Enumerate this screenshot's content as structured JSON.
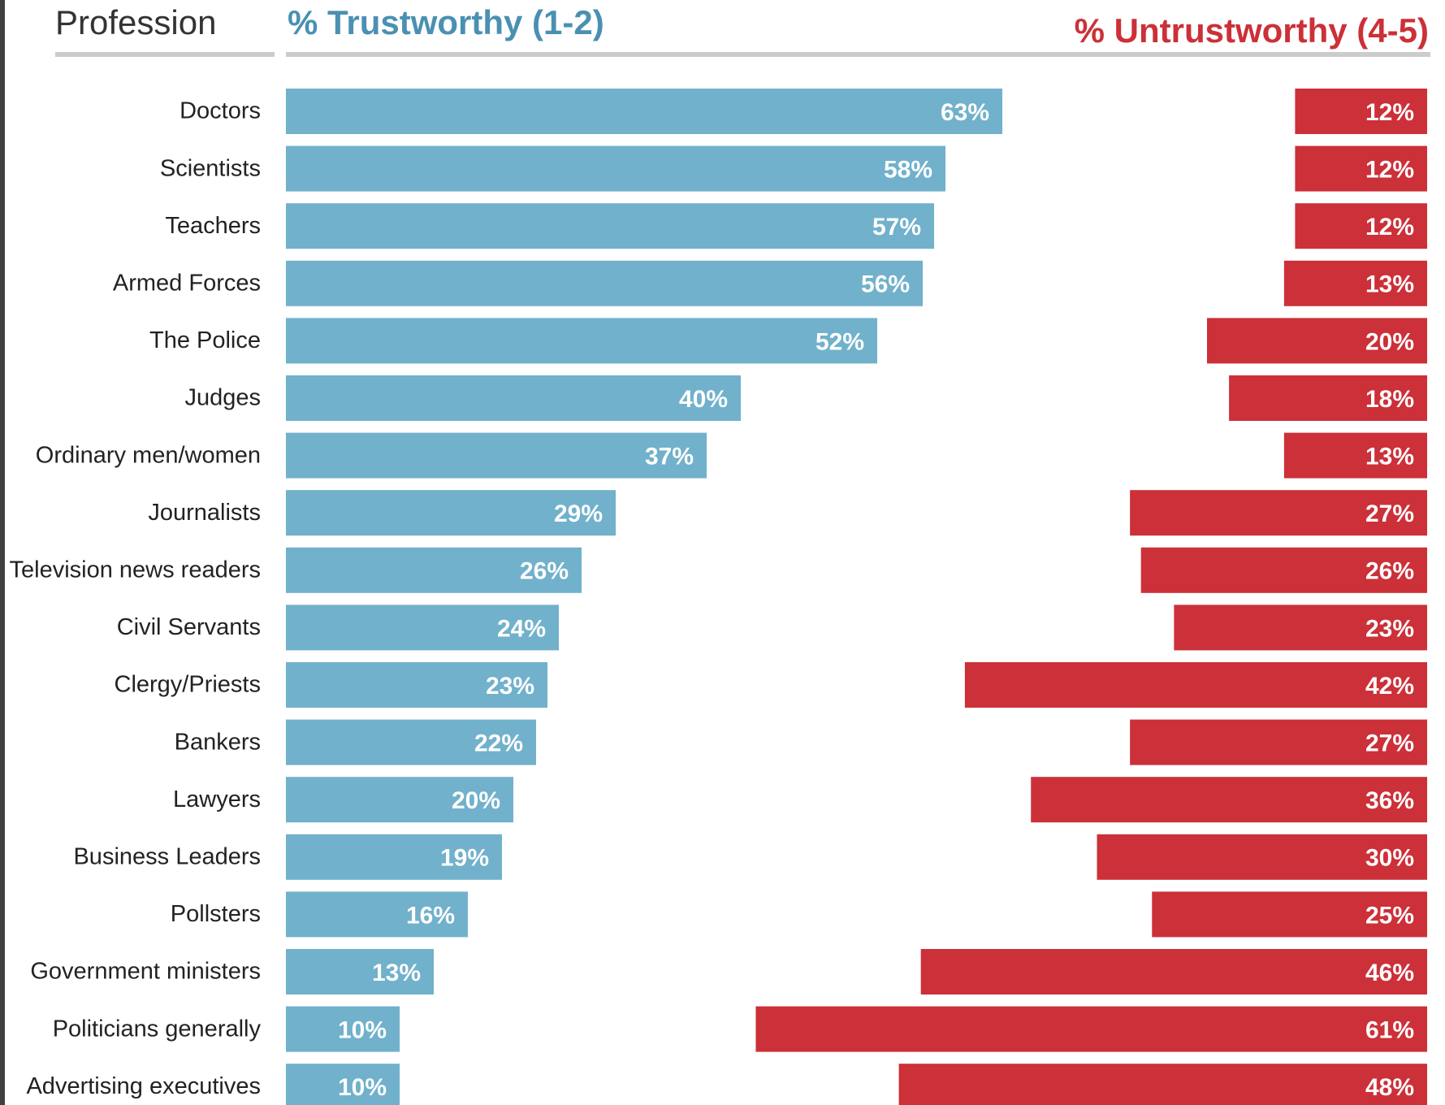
{
  "headers": {
    "category": "Profession",
    "trustworthy": "% Trustworthy (1-2)",
    "untrustworthy": "% Untrustworthy (4-5)"
  },
  "colors": {
    "trustworthy": "#71b1cb",
    "untrustworthy": "#cc3038",
    "trustworthy_text": "#4a90b2",
    "untrustworthy_text": "#cc3038",
    "rule": "#cccccc"
  },
  "chart_data": {
    "type": "bar",
    "categories": [
      "Doctors",
      "Scientists",
      "Teachers",
      "Armed Forces",
      "The Police",
      "Judges",
      "Ordinary men/women",
      "Journalists",
      "Television news readers",
      "Civil Servants",
      "Clergy/Priests",
      "Bankers",
      "Lawyers",
      "Business Leaders",
      "Pollsters",
      "Government ministers",
      "Politicians generally",
      "Advertising executives"
    ],
    "series": [
      {
        "name": "% Trustworthy (1-2)",
        "values": [
          63,
          58,
          57,
          56,
          52,
          40,
          37,
          29,
          26,
          24,
          23,
          22,
          20,
          19,
          16,
          13,
          10,
          10
        ]
      },
      {
        "name": "% Untrustworthy (4-5)",
        "values": [
          12,
          12,
          12,
          13,
          20,
          18,
          13,
          27,
          26,
          23,
          42,
          27,
          36,
          30,
          25,
          46,
          61,
          48
        ]
      }
    ],
    "value_suffix": "%",
    "grid": false
  }
}
